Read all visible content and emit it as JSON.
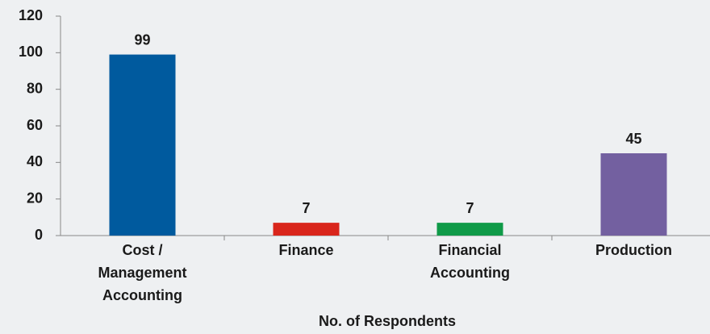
{
  "chart_data": {
    "type": "bar",
    "categories": [
      "Cost / Management Accounting",
      "Finance",
      "Financial Accounting",
      "Production"
    ],
    "values": [
      99,
      7,
      7,
      45
    ],
    "colors": [
      "#005a9e",
      "#d9261c",
      "#0f9a48",
      "#7360a0"
    ],
    "x_label": "No. of Respondents",
    "ylim": [
      0,
      120
    ],
    "yticks": [
      0,
      20,
      40,
      60,
      80,
      100,
      120
    ],
    "grid": false
  }
}
